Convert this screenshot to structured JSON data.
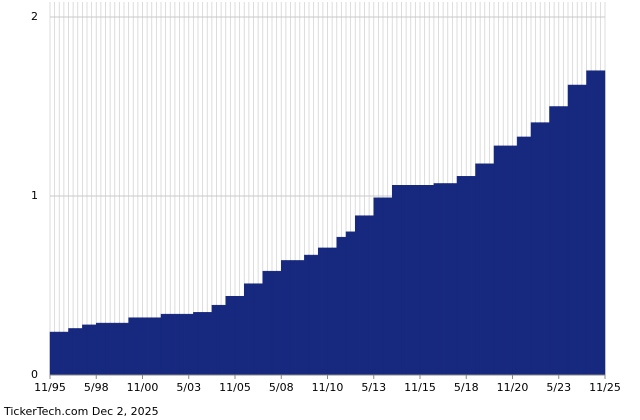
{
  "chart_data": {
    "type": "bar",
    "source": "TickerTech.com  Dec 2, 2025",
    "values": [
      0.24,
      0.24,
      0.24,
      0.24,
      0.26,
      0.26,
      0.26,
      0.28,
      0.28,
      0.28,
      0.29,
      0.29,
      0.29,
      0.29,
      0.29,
      0.29,
      0.29,
      0.32,
      0.32,
      0.32,
      0.32,
      0.32,
      0.32,
      0.32,
      0.34,
      0.34,
      0.34,
      0.34,
      0.34,
      0.34,
      0.34,
      0.35,
      0.35,
      0.35,
      0.35,
      0.39,
      0.39,
      0.39,
      0.44,
      0.44,
      0.44,
      0.44,
      0.51,
      0.51,
      0.51,
      0.51,
      0.58,
      0.58,
      0.58,
      0.58,
      0.64,
      0.64,
      0.64,
      0.64,
      0.64,
      0.67,
      0.67,
      0.67,
      0.71,
      0.71,
      0.71,
      0.71,
      0.77,
      0.77,
      0.8,
      0.8,
      0.89,
      0.89,
      0.89,
      0.89,
      0.99,
      0.99,
      0.99,
      0.99,
      1.06,
      1.06,
      1.06,
      1.06,
      1.06,
      1.06,
      1.06,
      1.06,
      1.06,
      1.07,
      1.07,
      1.07,
      1.07,
      1.07,
      1.11,
      1.11,
      1.11,
      1.11,
      1.18,
      1.18,
      1.18,
      1.18,
      1.28,
      1.28,
      1.28,
      1.28,
      1.28,
      1.33,
      1.33,
      1.33,
      1.41,
      1.41,
      1.41,
      1.41,
      1.5,
      1.5,
      1.5,
      1.5,
      1.62,
      1.62,
      1.62,
      1.62,
      1.7,
      1.7,
      1.7,
      1.7
    ],
    "color": "#17287f",
    "xlim": [
      0,
      120
    ],
    "xticks": [
      {
        "value": 0,
        "label": "11/95"
      },
      {
        "value": 10,
        "label": "5/98"
      },
      {
        "value": 20,
        "label": "11/00"
      },
      {
        "value": 30,
        "label": "5/03"
      },
      {
        "value": 40,
        "label": "11/05"
      },
      {
        "value": 50,
        "label": "5/08"
      },
      {
        "value": 60,
        "label": "11/10"
      },
      {
        "value": 70,
        "label": "5/13"
      },
      {
        "value": 80,
        "label": "11/15"
      },
      {
        "value": 90,
        "label": "5/18"
      },
      {
        "value": 100,
        "label": "11/20"
      },
      {
        "value": 110,
        "label": "5/23"
      },
      {
        "value": 120,
        "label": "11/25"
      }
    ],
    "ylim": [
      0,
      2
    ],
    "yticks": [
      0,
      1,
      2
    ],
    "grid": true
  }
}
